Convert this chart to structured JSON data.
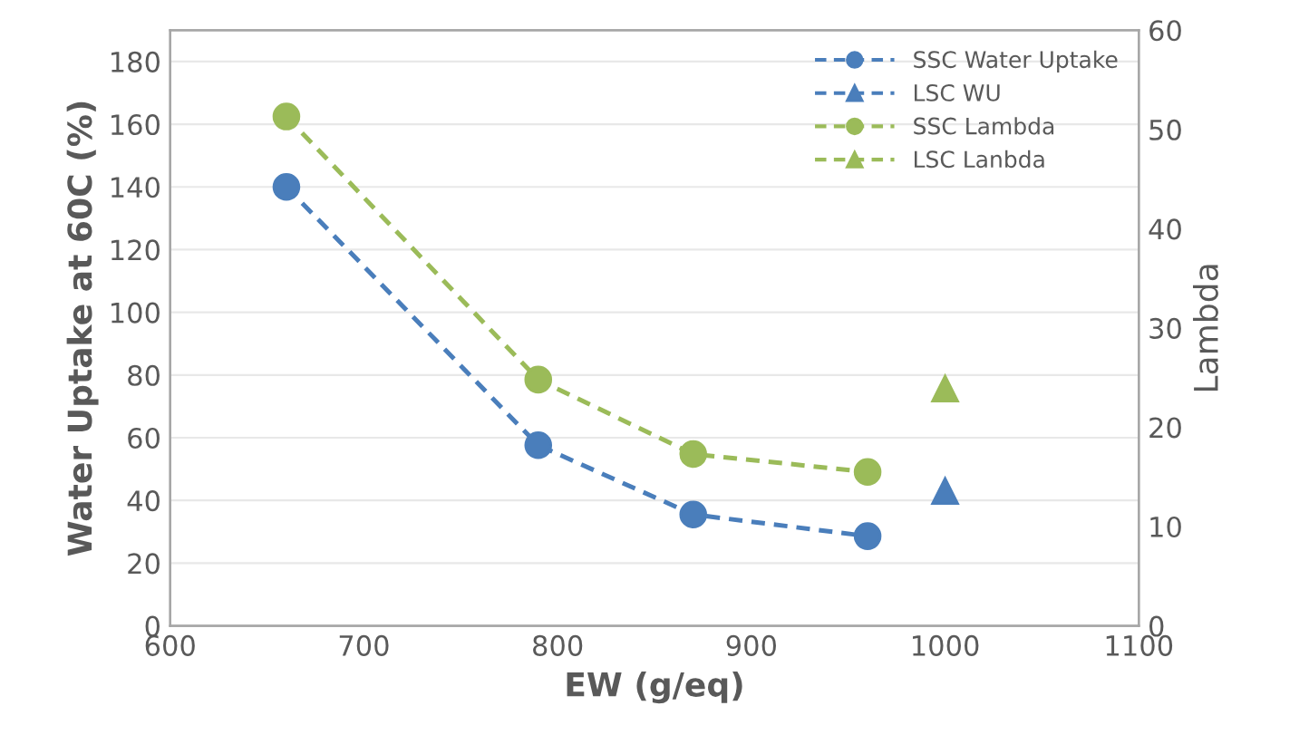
{
  "chart_data": {
    "type": "line",
    "xlabel": "EW (g/eq)",
    "ylabel": "Water Uptake at 60C (%)",
    "y2label": "Lambda",
    "xlim": [
      600,
      1100
    ],
    "xticks": [
      600,
      700,
      800,
      900,
      1000,
      1100
    ],
    "ylim": [
      0,
      190
    ],
    "yticks": [
      0,
      20,
      40,
      60,
      80,
      100,
      120,
      140,
      160,
      180
    ],
    "y2lim": [
      0,
      60
    ],
    "y2ticks": [
      0,
      10,
      20,
      30,
      40,
      50,
      60
    ],
    "grid": "y",
    "legend": "top right",
    "line_style": "dashed",
    "series": [
      {
        "name": "SSC Water Uptake",
        "color": "#4a7ebb",
        "marker": "circle",
        "x": [
          660,
          790,
          870,
          960
        ],
        "values": [
          140,
          57.6,
          35.5,
          28.6
        ]
      },
      {
        "name": "LSC WU",
        "color": "#4a7ebb",
        "marker": "triangle",
        "x": [
          1000
        ],
        "values": [
          43
        ]
      },
      {
        "name": "SSC Lambda",
        "color": "#9bbb59",
        "marker": "circle",
        "axis": "y2",
        "x": [
          660,
          790,
          870,
          960
        ],
        "values": [
          51.3,
          24.8,
          17.3,
          15.5
        ]
      },
      {
        "name": "LSC Lanbda",
        "color": "#9bbb59",
        "marker": "triangle",
        "axis": "y2",
        "x": [
          1000
        ],
        "values": [
          23.9
        ]
      }
    ]
  }
}
